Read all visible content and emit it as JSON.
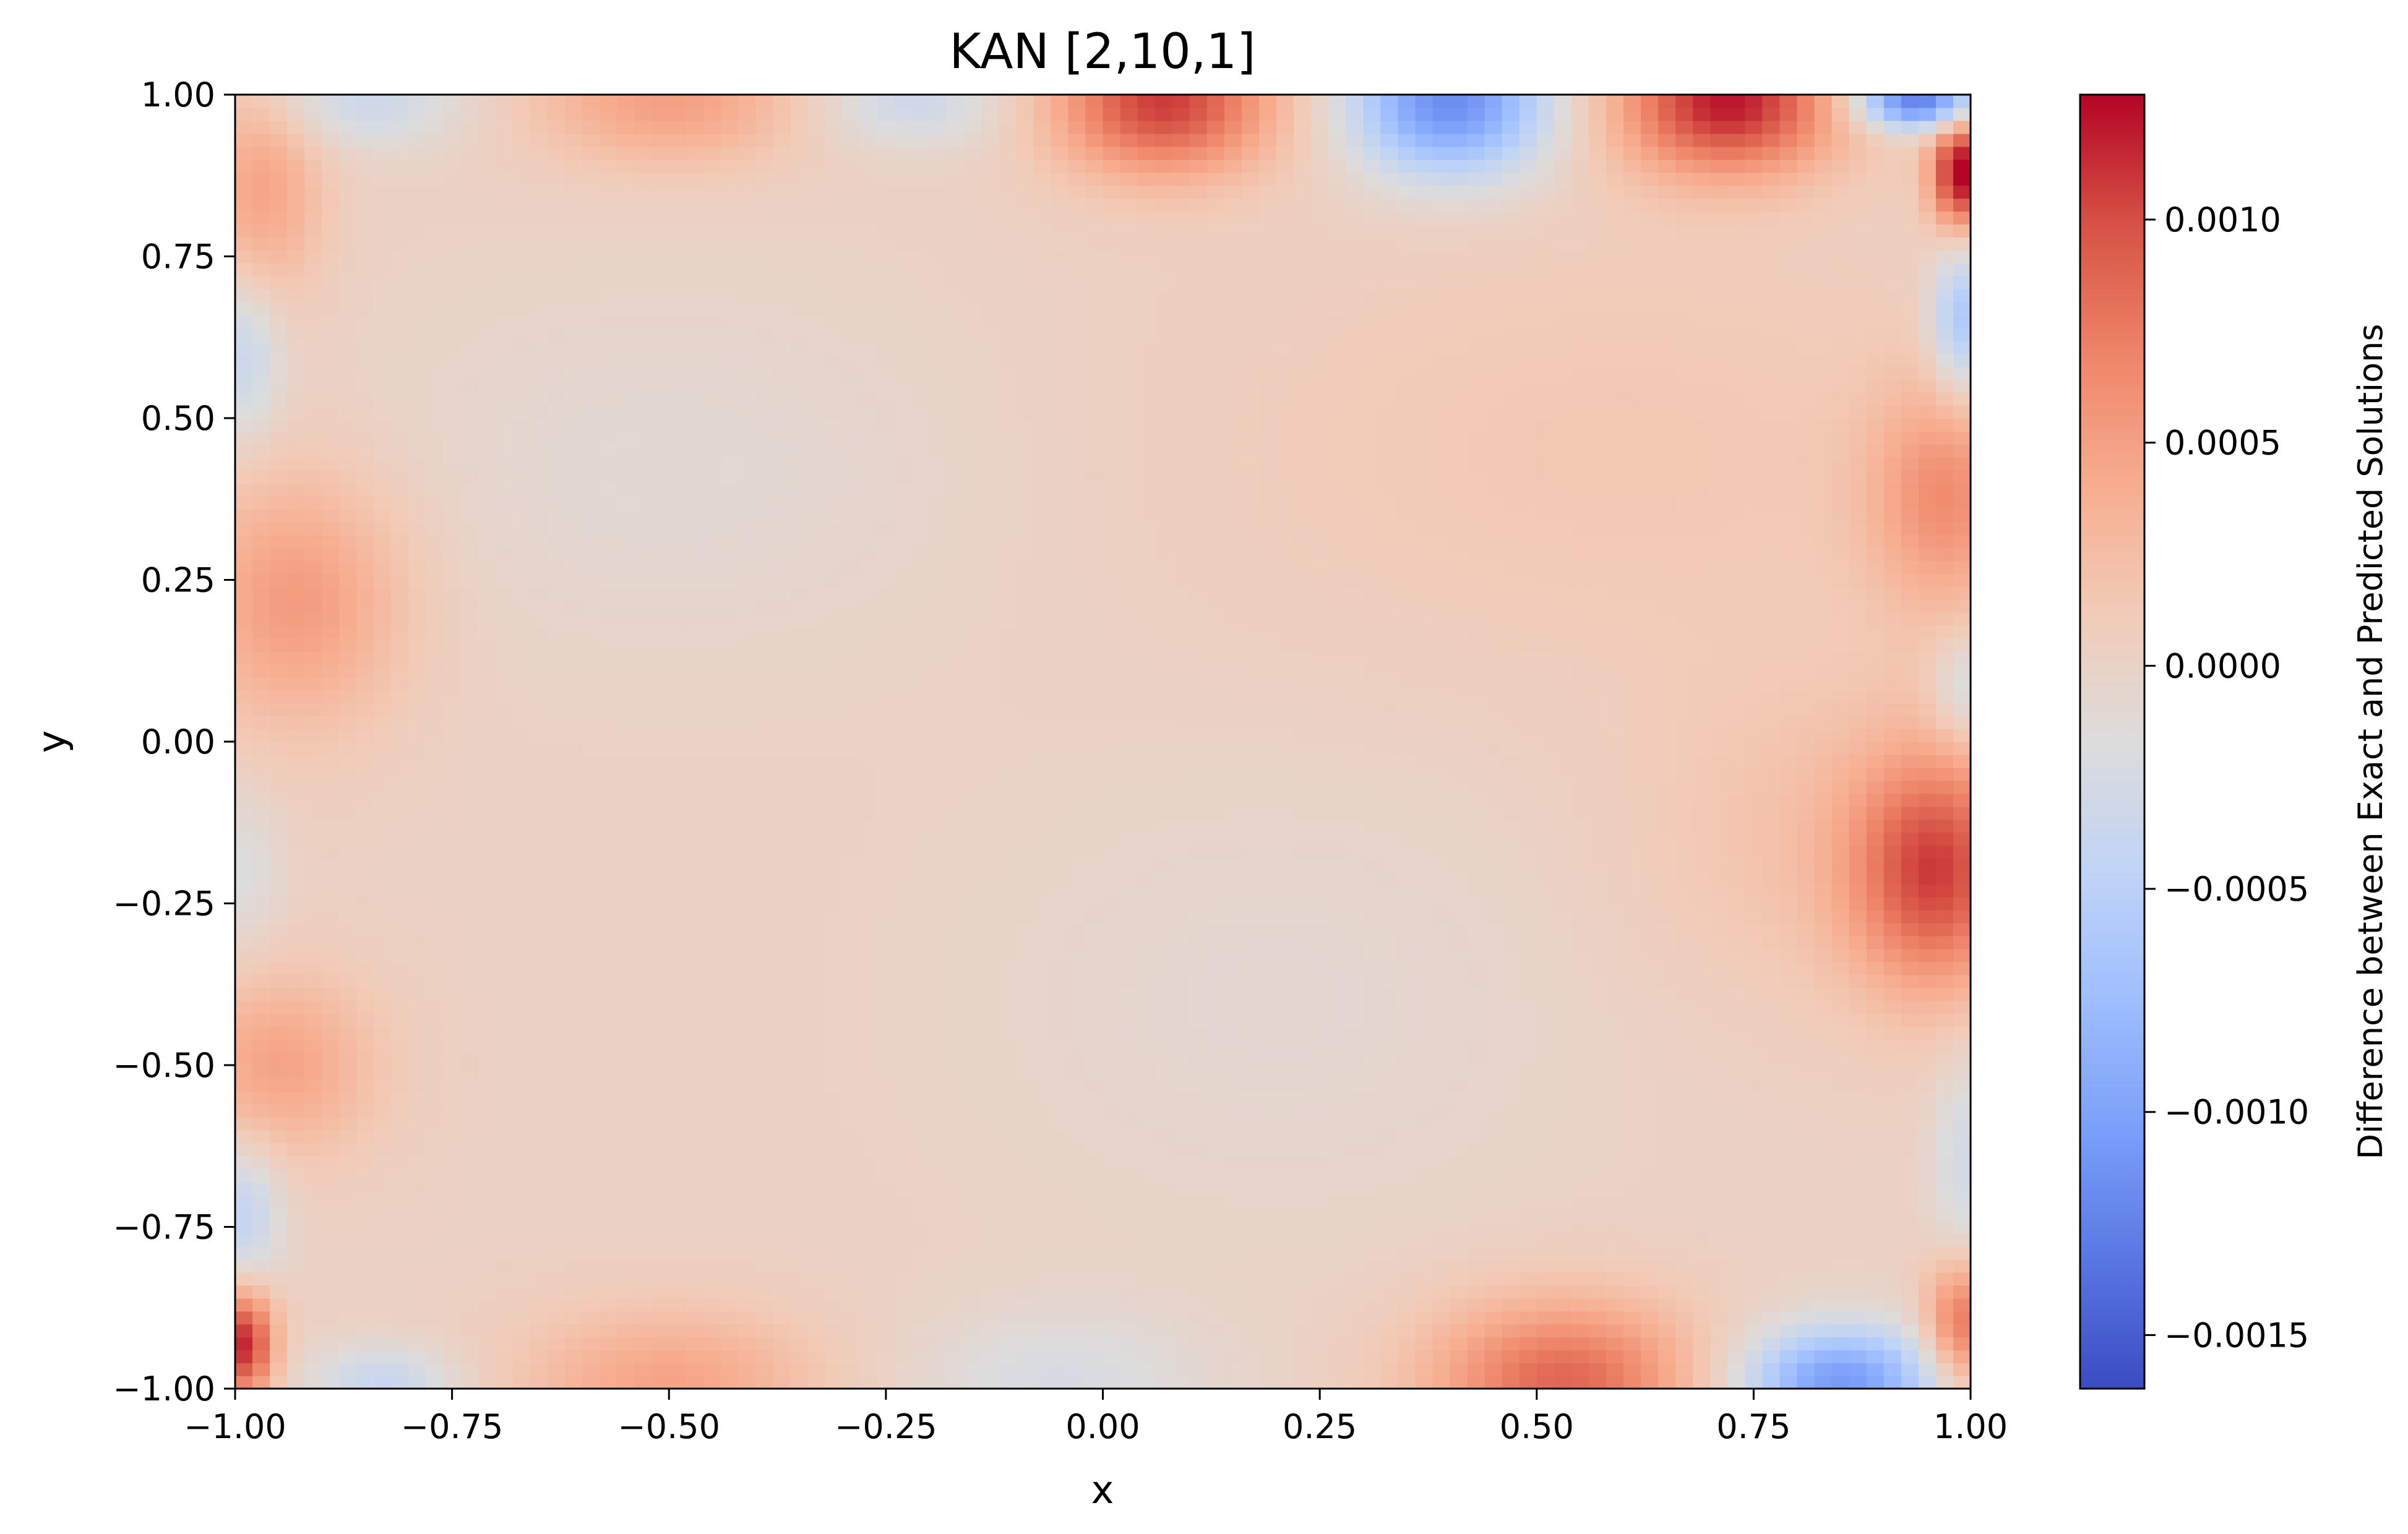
{
  "chart_data": {
    "type": "heatmap",
    "title": "KAN [2,10,1]",
    "xlabel": "x",
    "ylabel": "y",
    "xlim": [
      -1.0,
      1.0
    ],
    "ylim": [
      -1.0,
      1.0
    ],
    "x_ticks": [
      -1.0,
      -0.75,
      -0.5,
      -0.25,
      0.0,
      0.25,
      0.5,
      0.75,
      1.0
    ],
    "x_tick_labels": [
      "−1.00",
      "−0.75",
      "−0.50",
      "−0.25",
      "0.00",
      "0.25",
      "0.50",
      "0.75",
      "1.00"
    ],
    "y_ticks": [
      -1.0,
      -0.75,
      -0.5,
      -0.25,
      0.0,
      0.25,
      0.5,
      0.75,
      1.0
    ],
    "y_tick_labels": [
      "−1.00",
      "−0.75",
      "−0.50",
      "−0.25",
      "0.00",
      "0.25",
      "0.50",
      "0.75",
      "1.00"
    ],
    "grid": false,
    "colormap": "coolwarm",
    "colorbar": {
      "label": "Difference between Exact and Predicted Solutions",
      "range": [
        -0.00162,
        0.00128
      ],
      "ticks": [
        -0.0015,
        -0.001,
        -0.0005,
        0.0,
        0.0005,
        0.001
      ],
      "tick_labels": [
        "−0.0015",
        "−0.0010",
        "−0.0005",
        "0.0000",
        "0.0005",
        "0.0010"
      ]
    },
    "field": {
      "grid_size": 100,
      "base": 2e-05,
      "features": [
        {
          "x": -0.5,
          "y": 0.99,
          "sx": 0.11,
          "sy": 0.07,
          "v": 0.00048
        },
        {
          "x": 0.07,
          "y": 0.99,
          "sx": 0.09,
          "sy": 0.08,
          "v": 0.00105
        },
        {
          "x": 0.72,
          "y": 0.99,
          "sx": 0.09,
          "sy": 0.08,
          "v": 0.00118
        },
        {
          "x": -0.85,
          "y": 0.99,
          "sx": 0.08,
          "sy": 0.05,
          "v": -0.00035
        },
        {
          "x": -0.22,
          "y": 0.99,
          "sx": 0.08,
          "sy": 0.05,
          "v": -0.00035
        },
        {
          "x": 0.4,
          "y": 0.99,
          "sx": 0.08,
          "sy": 0.08,
          "v": -0.0012
        },
        {
          "x": 0.94,
          "y": 0.99,
          "sx": 0.05,
          "sy": 0.03,
          "v": -0.00135
        },
        {
          "x": 0.99,
          "y": 0.88,
          "sx": 0.025,
          "sy": 0.06,
          "v": 0.0013
        },
        {
          "x": 0.99,
          "y": 0.65,
          "sx": 0.025,
          "sy": 0.08,
          "v": -0.0007
        },
        {
          "x": 0.97,
          "y": 0.38,
          "sx": 0.06,
          "sy": 0.12,
          "v": 0.00055
        },
        {
          "x": 0.99,
          "y": 0.08,
          "sx": 0.025,
          "sy": 0.06,
          "v": -0.00035
        },
        {
          "x": 0.96,
          "y": -0.2,
          "sx": 0.07,
          "sy": 0.13,
          "v": 0.00095
        },
        {
          "x": 0.82,
          "y": -0.15,
          "sx": 0.15,
          "sy": 0.18,
          "v": 0.00018
        },
        {
          "x": 0.99,
          "y": -0.65,
          "sx": 0.025,
          "sy": 0.12,
          "v": -0.0003
        },
        {
          "x": 0.99,
          "y": -0.9,
          "sx": 0.03,
          "sy": 0.07,
          "v": 0.0008
        },
        {
          "x": 0.85,
          "y": -0.99,
          "sx": 0.08,
          "sy": 0.06,
          "v": -0.0011
        },
        {
          "x": 0.53,
          "y": -0.99,
          "sx": 0.11,
          "sy": 0.09,
          "v": 0.00085
        },
        {
          "x": -0.5,
          "y": -0.99,
          "sx": 0.12,
          "sy": 0.08,
          "v": 0.00045
        },
        {
          "x": -0.05,
          "y": -0.99,
          "sx": 0.12,
          "sy": 0.08,
          "v": -0.00025
        },
        {
          "x": -0.83,
          "y": -0.99,
          "sx": 0.06,
          "sy": 0.04,
          "v": -0.0004
        },
        {
          "x": -0.99,
          "y": -0.93,
          "sx": 0.025,
          "sy": 0.06,
          "v": 0.00115
        },
        {
          "x": -0.99,
          "y": -0.73,
          "sx": 0.03,
          "sy": 0.08,
          "v": -0.00045
        },
        {
          "x": -0.95,
          "y": -0.5,
          "sx": 0.08,
          "sy": 0.1,
          "v": 0.00045
        },
        {
          "x": -0.99,
          "y": -0.2,
          "sx": 0.03,
          "sy": 0.09,
          "v": -0.0002
        },
        {
          "x": -0.93,
          "y": 0.22,
          "sx": 0.09,
          "sy": 0.14,
          "v": 0.00052
        },
        {
          "x": -0.99,
          "y": 0.6,
          "sx": 0.03,
          "sy": 0.09,
          "v": -0.0004
        },
        {
          "x": -0.97,
          "y": 0.85,
          "sx": 0.05,
          "sy": 0.12,
          "v": 0.00045
        },
        {
          "x": 0.6,
          "y": 0.45,
          "sx": 0.35,
          "sy": 0.25,
          "v": 0.00013
        },
        {
          "x": -0.5,
          "y": 0.42,
          "sx": 0.25,
          "sy": 0.2,
          "v": -0.00012
        },
        {
          "x": 0.2,
          "y": -0.4,
          "sx": 0.25,
          "sy": 0.25,
          "v": -0.0001
        }
      ]
    }
  }
}
